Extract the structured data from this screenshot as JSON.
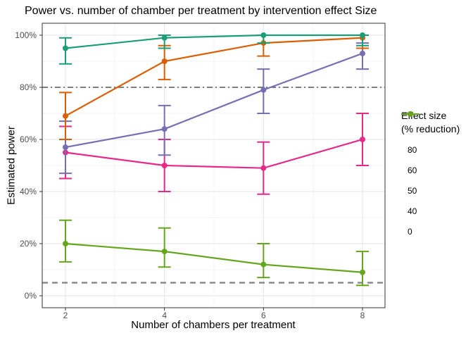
{
  "title": "Power vs. number of chamber per treatment by intervention effect Size",
  "chart_data": {
    "type": "line",
    "title": "Power vs. number of chamber per treatment by intervention effect Size",
    "xlabel": "Number of chambers per treatment",
    "ylabel": "Estimated power",
    "x": [
      2,
      4,
      6,
      8
    ],
    "x_tick_labels": [
      "2",
      "4",
      "6",
      "8"
    ],
    "y_tick_values": [
      0,
      20,
      40,
      60,
      80,
      100
    ],
    "y_tick_labels": [
      "0%",
      "20%",
      "40%",
      "60%",
      "80%",
      "100%"
    ],
    "y_minor_values": [
      10,
      30,
      50,
      70,
      90
    ],
    "x_minor_values": [
      3,
      5,
      7
    ],
    "ylim": [
      0,
      100
    ],
    "xlim": [
      2,
      8
    ],
    "legend_title_line1": "Effect size",
    "legend_title_line2": "(% reduction)",
    "legend_position": "right",
    "grid": "on",
    "reference_lines": [
      {
        "y": 80,
        "style": "dashdot",
        "color": "#555555",
        "width": 1.4
      },
      {
        "y": 5,
        "style": "dashed",
        "color": "#8c8c8c",
        "width": 2.4
      }
    ],
    "series": [
      {
        "name": "80",
        "color": "#1B9E77",
        "values": [
          95,
          99,
          100,
          100
        ],
        "err_low": [
          89,
          95,
          97,
          96
        ],
        "err_high": [
          99,
          100,
          100,
          100
        ]
      },
      {
        "name": "60",
        "color": "#D95F02",
        "values": [
          69,
          90,
          97,
          99
        ],
        "err_low": [
          60,
          83,
          92,
          95
        ],
        "err_high": [
          78,
          96,
          100,
          100
        ]
      },
      {
        "name": "50",
        "color": "#7570B3",
        "values": [
          57,
          64,
          79,
          93
        ],
        "err_low": [
          47,
          54,
          70,
          87
        ],
        "err_high": [
          67,
          73,
          87,
          97
        ]
      },
      {
        "name": "40",
        "color": "#E7298A",
        "values": [
          55,
          50,
          49,
          60
        ],
        "err_low": [
          45,
          40,
          39,
          50
        ],
        "err_high": [
          65,
          60,
          59,
          70
        ]
      },
      {
        "name": "0",
        "color": "#66A61E",
        "values": [
          20,
          17,
          12,
          9
        ],
        "err_low": [
          13,
          11,
          7,
          4
        ],
        "err_high": [
          29,
          26,
          20,
          17
        ]
      }
    ],
    "colors": {
      "panel_background": "#ffffff",
      "panel_border": "#333333",
      "grid_major": "#e4e4e4",
      "grid_minor": "#f4f4f4",
      "tick_label": "#4d4d4d"
    }
  }
}
